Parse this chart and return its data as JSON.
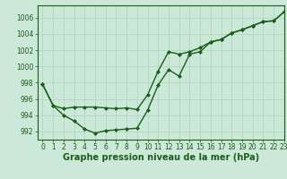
{
  "title": "Graphe pression niveau de la mer (hPa)",
  "background_color": "#cce8d8",
  "grid_color": "#b0d8c0",
  "line_color": "#1a5e1a",
  "xlim": [
    -0.5,
    23
  ],
  "ylim": [
    991.0,
    1007.5
  ],
  "yticks": [
    992,
    994,
    996,
    998,
    1000,
    1002,
    1004,
    1006
  ],
  "xticks": [
    0,
    1,
    2,
    3,
    4,
    5,
    6,
    7,
    8,
    9,
    10,
    11,
    12,
    13,
    14,
    15,
    16,
    17,
    18,
    19,
    20,
    21,
    22,
    23
  ],
  "series1_x": [
    0,
    1,
    2,
    3,
    4,
    5,
    6,
    7,
    8,
    9,
    10,
    11,
    12,
    13,
    14,
    15,
    16,
    17,
    18,
    19,
    20,
    21,
    22,
    23
  ],
  "series1_y": [
    997.8,
    995.2,
    994.8,
    995.0,
    995.0,
    995.0,
    994.9,
    994.8,
    994.9,
    994.7,
    996.5,
    999.4,
    1001.8,
    1001.5,
    1001.8,
    1002.3,
    1003.0,
    1003.3,
    1004.1,
    1004.5,
    1005.0,
    1005.5,
    1005.6,
    1006.7
  ],
  "series2_x": [
    0,
    1,
    2,
    3,
    4,
    5,
    6,
    7,
    8,
    9,
    10,
    11,
    12,
    13,
    14,
    15,
    16,
    17,
    18,
    19,
    20,
    21,
    22,
    23
  ],
  "series2_y": [
    997.8,
    995.2,
    994.0,
    993.3,
    992.3,
    991.8,
    992.1,
    992.2,
    992.3,
    992.4,
    994.6,
    997.7,
    999.6,
    998.8,
    1001.5,
    1001.8,
    1003.0,
    1003.3,
    1004.1,
    1004.5,
    1005.0,
    1005.5,
    1005.6,
    1006.7
  ],
  "marker": "D",
  "marker_size": 2.0,
  "linewidth": 1.0,
  "tick_fontsize": 5.5,
  "title_fontsize": 7.0,
  "title_color": "#1a5e1a",
  "tick_color": "#1a5e1a",
  "axis_color": "#1a5e1a"
}
